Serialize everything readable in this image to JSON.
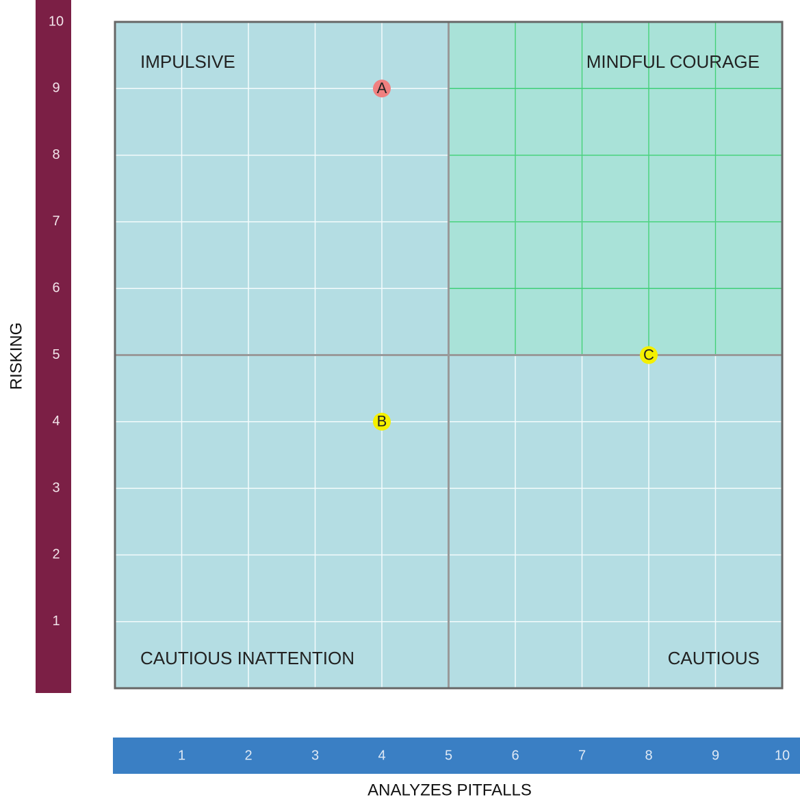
{
  "chart_data": {
    "type": "scatter",
    "x_label": "ANALYZES PITFALLS",
    "y_label": "RISKING",
    "xlim": [
      0,
      10
    ],
    "ylim": [
      0,
      10
    ],
    "xticks": [
      1,
      2,
      3,
      4,
      5,
      6,
      7,
      8,
      9,
      10
    ],
    "yticks": [
      1,
      2,
      3,
      4,
      5,
      6,
      7,
      8,
      9,
      10
    ],
    "grid": true,
    "dividers": {
      "x": 5,
      "y": 5
    },
    "highlight": {
      "xlim": [
        5,
        10
      ],
      "ylim": [
        5,
        10
      ],
      "color": "#a9e2d8",
      "grid_color": "#3fcf78"
    },
    "quadrant_labels": [
      "IMPULSIVE",
      "MINDFUL COURAGE",
      "CAUTIOUS INATTENTION",
      "CAUTIOUS"
    ],
    "x": [
      4,
      4,
      8
    ],
    "values": [
      9,
      4,
      5
    ],
    "point_labels": [
      "A",
      "B",
      "C"
    ],
    "colors": [
      "#f08080",
      "#f4f000",
      "#f4f000"
    ],
    "plot_color": "#b4dde3",
    "y_axis_color": "#7b1f45",
    "x_axis_color": "#3a7fc4"
  }
}
